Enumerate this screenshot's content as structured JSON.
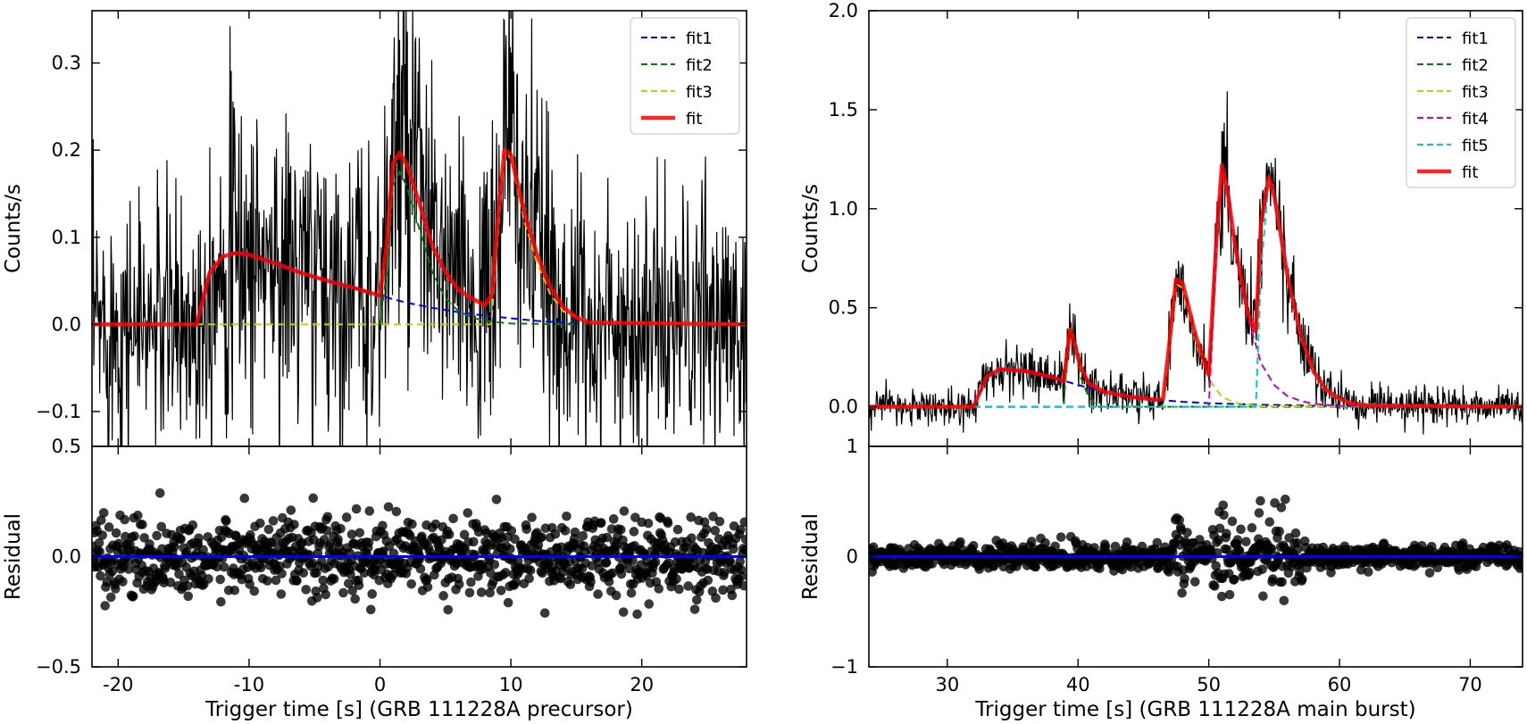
{
  "chart_data": [
    {
      "type": "line",
      "panel": "left-top",
      "ylabel": "Counts/s",
      "xlim": [
        -22,
        28
      ],
      "ylim": [
        -0.14,
        0.36
      ],
      "xticks": [
        -20,
        -10,
        0,
        10,
        20
      ],
      "yticks": [
        -0.1,
        0.0,
        0.1,
        0.2,
        0.3
      ],
      "ytick_labels": [
        "−0.1",
        "0.0",
        "0.1",
        "0.2",
        "0.3"
      ],
      "legend": {
        "placement": "top-right",
        "entries": [
          "fit1",
          "fit2",
          "fit3",
          "fit"
        ]
      },
      "grid": false,
      "series": [
        {
          "name": "fit1",
          "color": "#0000ff",
          "style": "dashed",
          "x": [
            -14,
            -13,
            -12,
            -11,
            -10,
            -8,
            -6,
            -4,
            -2,
            0,
            2,
            4,
            6,
            8,
            10,
            12,
            14,
            15
          ],
          "y": [
            0,
            0.06,
            0.078,
            0.082,
            0.08,
            0.07,
            0.059,
            0.05,
            0.042,
            0.033,
            0.025,
            0.019,
            0.014,
            0.01,
            0.007,
            0.004,
            0.002,
            0
          ]
        },
        {
          "name": "fit2",
          "color": "#008000",
          "style": "dashed",
          "x": [
            0,
            0.5,
            1.0,
            1.5,
            2.0,
            3.0,
            4.0,
            5.0,
            6.0,
            7.0,
            8.0,
            10,
            15
          ],
          "y": [
            0,
            0.06,
            0.16,
            0.175,
            0.16,
            0.11,
            0.06,
            0.03,
            0.015,
            0.008,
            0.004,
            0.001,
            0
          ]
        },
        {
          "name": "fit3",
          "color": "#cccc00",
          "style": "dashed",
          "x": [
            -22,
            8.5,
            9.0,
            9.5,
            10.0,
            11,
            12,
            13,
            14,
            16,
            28
          ],
          "y": [
            0,
            0,
            0.1,
            0.2,
            0.19,
            0.12,
            0.07,
            0.035,
            0.015,
            0.003,
            0
          ]
        },
        {
          "name": "fit",
          "color": "#ff0000",
          "style": "solid",
          "x": [
            -22,
            -14,
            -13,
            -12,
            -11,
            -10,
            -8,
            -6,
            -4,
            -2,
            0,
            0.5,
            1.0,
            1.5,
            2.0,
            3.0,
            4.0,
            5.0,
            6.0,
            7.0,
            8.0,
            8.6,
            9.0,
            9.5,
            10.0,
            11,
            12,
            13,
            14,
            15,
            16,
            28
          ],
          "y": [
            0,
            0,
            0.06,
            0.078,
            0.082,
            0.08,
            0.07,
            0.059,
            0.05,
            0.042,
            0.033,
            0.09,
            0.185,
            0.197,
            0.185,
            0.14,
            0.09,
            0.06,
            0.04,
            0.03,
            0.022,
            0.035,
            0.12,
            0.2,
            0.195,
            0.13,
            0.08,
            0.043,
            0.02,
            0.008,
            0.002,
            0
          ]
        }
      ]
    },
    {
      "type": "scatter",
      "panel": "left-bottom",
      "ylabel": "Residual",
      "xlabel": "Trigger time [s] (GRB 111228A precursor)",
      "xlim": [
        -22,
        28
      ],
      "ylim": [
        -0.5,
        0.5
      ],
      "xticks": [
        -20,
        -10,
        0,
        10,
        20
      ],
      "yticks": [
        -0.5,
        0.0,
        0.5
      ],
      "ytick_labels": [
        "−0.5",
        "0.0",
        "0.5"
      ],
      "grid": false,
      "zero_line": {
        "color": "#0000ff",
        "y": 0
      },
      "marker_color": "#000000",
      "residual_spread": 0.09
    },
    {
      "type": "line",
      "panel": "right-top",
      "ylabel": "Counts/s",
      "xlim": [
        24,
        74
      ],
      "ylim": [
        -0.2,
        2.0
      ],
      "xticks": [
        30,
        40,
        50,
        60,
        70
      ],
      "yticks": [
        0.0,
        0.5,
        1.0,
        1.5,
        2.0
      ],
      "ytick_labels": [
        "0.0",
        "0.5",
        "1.0",
        "1.5",
        "2.0"
      ],
      "legend": {
        "placement": "top-right",
        "entries": [
          "fit1",
          "fit2",
          "fit3",
          "fit4",
          "fit5",
          "fit"
        ]
      },
      "grid": false,
      "series": [
        {
          "name": "fit1",
          "color": "#0000ff",
          "style": "dashed",
          "x": [
            24,
            32,
            33,
            34,
            36,
            38,
            40,
            42,
            44,
            46,
            48,
            50,
            54,
            60,
            74
          ],
          "y": [
            0,
            0,
            0.15,
            0.19,
            0.18,
            0.15,
            0.11,
            0.075,
            0.05,
            0.035,
            0.025,
            0.018,
            0.01,
            0.003,
            0
          ]
        },
        {
          "name": "fit2",
          "color": "#008000",
          "style": "dashed",
          "x": [
            24,
            38.9,
            39.1,
            39.4,
            39.8,
            40.2,
            40.8,
            41.5,
            74
          ],
          "y": [
            0,
            0,
            0.2,
            0.4,
            0.3,
            0.15,
            0.05,
            0,
            0
          ]
        },
        {
          "name": "fit3",
          "color": "#cccc00",
          "style": "dashed",
          "x": [
            24,
            46.5,
            47.0,
            47.5,
            48.0,
            49.0,
            50.0,
            51.0,
            52.0,
            54.0,
            74
          ],
          "y": [
            0,
            0,
            0.3,
            0.62,
            0.6,
            0.33,
            0.14,
            0.05,
            0.02,
            0.003,
            0
          ]
        },
        {
          "name": "fit4",
          "color": "#cc00cc",
          "style": "dashed",
          "x": [
            24,
            50.0,
            50.6,
            51.0,
            51.5,
            52.0,
            53.0,
            54.0,
            55.0,
            56.0,
            57.0,
            58.0,
            60.0,
            74
          ],
          "y": [
            0,
            0,
            0.8,
            1.2,
            1.05,
            0.8,
            0.45,
            0.22,
            0.11,
            0.055,
            0.03,
            0.015,
            0.004,
            0
          ]
        },
        {
          "name": "fit5",
          "color": "#00cccc",
          "style": "dashed",
          "x": [
            24,
            53.6,
            54.0,
            54.6,
            55.0,
            56.0,
            57.0,
            58.0,
            59.0,
            60.0,
            61.0,
            74
          ],
          "y": [
            0,
            0,
            0.7,
            1.15,
            1.05,
            0.65,
            0.35,
            0.17,
            0.08,
            0.035,
            0.015,
            0
          ]
        },
        {
          "name": "fit",
          "color": "#ff0000",
          "style": "solid",
          "x": [
            24,
            32,
            33,
            34,
            36,
            38,
            38.9,
            39.4,
            39.8,
            40.2,
            40.8,
            42,
            44,
            46,
            46.5,
            47.0,
            47.5,
            48.0,
            49.0,
            50.0,
            50.6,
            51.0,
            51.5,
            52.0,
            53.0,
            53.6,
            54.0,
            54.6,
            55.0,
            56.0,
            57.0,
            58.0,
            59.0,
            60.0,
            61.0,
            62.0,
            74
          ],
          "y": [
            0,
            0,
            0.15,
            0.19,
            0.18,
            0.15,
            0.13,
            0.39,
            0.3,
            0.2,
            0.12,
            0.075,
            0.05,
            0.035,
            0.04,
            0.33,
            0.645,
            0.625,
            0.36,
            0.16,
            0.86,
            1.22,
            1.06,
            0.82,
            0.47,
            0.38,
            0.93,
            1.16,
            1.07,
            0.67,
            0.37,
            0.18,
            0.085,
            0.04,
            0.017,
            0.006,
            0
          ]
        }
      ]
    },
    {
      "type": "scatter",
      "panel": "right-bottom",
      "ylabel": "Residual",
      "xlabel": "Trigger time [s] (GRB 111228A main burst)",
      "xlim": [
        24,
        74
      ],
      "ylim": [
        -1,
        1
      ],
      "xticks": [
        30,
        40,
        50,
        60,
        70
      ],
      "yticks": [
        -1,
        0,
        1
      ],
      "ytick_labels": [
        "−1",
        "0",
        "1"
      ],
      "grid": false,
      "zero_line": {
        "color": "#0000ff",
        "y": 0
      },
      "marker_color": "#000000",
      "residual_spread": 0.05
    }
  ]
}
